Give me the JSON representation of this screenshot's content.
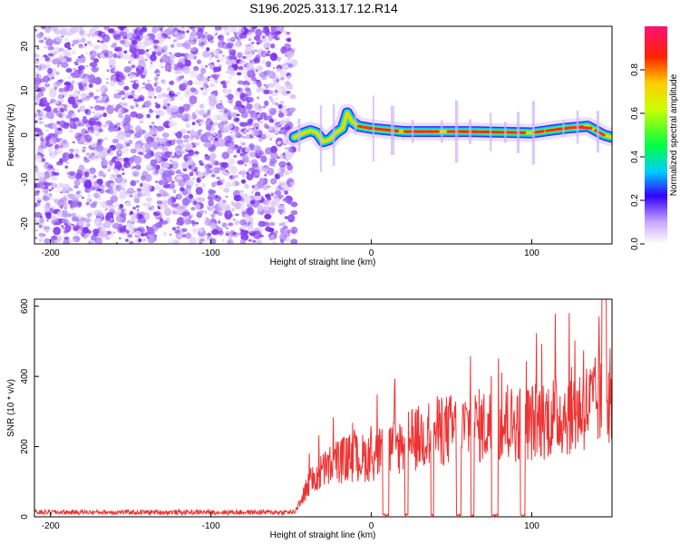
{
  "title": "S196.2025.313.17.12.R14",
  "colors": {
    "line": "#ee3333",
    "noise": "#8833ee",
    "frame": "#000000"
  },
  "chart_data": [
    {
      "type": "heatmap",
      "xlabel": "Height of straight line (km)",
      "ylabel": "Frequency (Hz)",
      "xlim": [
        -210,
        150
      ],
      "ylim": [
        -24.5,
        24.5
      ],
      "xticks": [
        -200,
        -100,
        0,
        100
      ],
      "yticks": [
        -20,
        -10,
        0,
        10,
        20
      ],
      "noise_region_km": [
        -210,
        -48
      ],
      "ridge_freq_hz": [
        [
          -48,
          -0.5
        ],
        [
          -42,
          0.5
        ],
        [
          -38,
          1.0
        ],
        [
          -34,
          0.5
        ],
        [
          -30,
          -1.5
        ],
        [
          -26,
          -1.0
        ],
        [
          -22,
          0.5
        ],
        [
          -18,
          1.5
        ],
        [
          -15,
          5.0
        ],
        [
          -12,
          3.0
        ],
        [
          -8,
          2.0
        ],
        [
          0,
          1.5
        ],
        [
          20,
          0.8
        ],
        [
          60,
          0.8
        ],
        [
          100,
          0.5
        ],
        [
          120,
          1.5
        ],
        [
          135,
          2.0
        ],
        [
          145,
          0.0
        ],
        [
          150,
          -0.5
        ]
      ],
      "colorbar": {
        "label": "Normalized spectral amplitude",
        "ticks": [
          0.0,
          0.2,
          0.4,
          0.6,
          0.8
        ],
        "range": [
          0,
          1
        ]
      }
    },
    {
      "type": "line",
      "xlabel": "Height of straight line (km)",
      "ylabel": "SNR (10 * v/v)",
      "xlim": [
        -210,
        150
      ],
      "ylim": [
        0,
        620
      ],
      "xticks": [
        -200,
        -100,
        0,
        100
      ],
      "yticks": [
        0,
        200,
        400,
        600
      ],
      "series": [
        {
          "name": "SNR",
          "trend": [
            [
              -210,
              12
            ],
            [
              -48,
              12
            ],
            [
              -40,
              90
            ],
            [
              -30,
              140
            ],
            [
              -20,
              170
            ],
            [
              0,
              180
            ],
            [
              20,
              220
            ],
            [
              40,
              255
            ],
            [
              60,
              270
            ],
            [
              80,
              275
            ],
            [
              100,
              285
            ],
            [
              120,
              310
            ],
            [
              140,
              340
            ],
            [
              150,
              380
            ]
          ],
          "dropouts_km": [
            [
              7,
              11
            ],
            [
              21,
              23
            ],
            [
              37,
              39
            ],
            [
              53,
              56
            ],
            [
              62,
              64
            ],
            [
              75,
              79
            ],
            [
              93,
              96
            ]
          ],
          "spike_km": 145,
          "spike_value": 620
        }
      ]
    }
  ]
}
